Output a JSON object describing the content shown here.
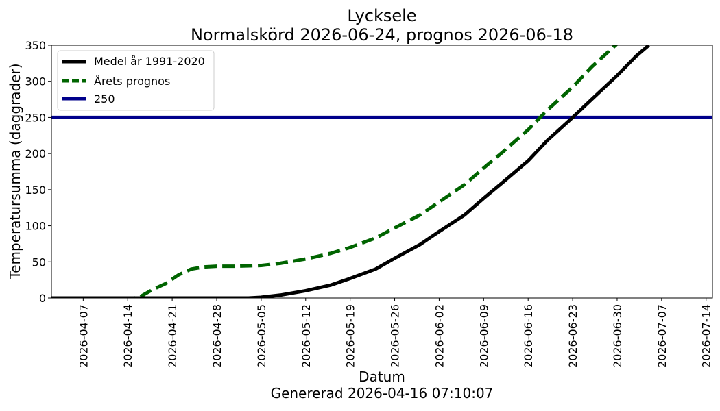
{
  "chart_data": {
    "type": "line",
    "title": "Lycksele",
    "subtitle": "Normalskörd 2026-06-24, prognos 2026-06-18",
    "xlabel": "Datum",
    "ylabel": "Temperatursumma (daggrader)",
    "footer": "Genererad 2026-04-16 07:10:07",
    "xlim": [
      "2026-04-02",
      "2026-07-15"
    ],
    "ylim": [
      0,
      350
    ],
    "x_ticks": [
      "2026-04-07",
      "2026-04-14",
      "2026-04-21",
      "2026-04-28",
      "2026-05-05",
      "2026-05-12",
      "2026-05-19",
      "2026-05-26",
      "2026-06-02",
      "2026-06-09",
      "2026-06-16",
      "2026-06-23",
      "2026-06-30",
      "2026-07-07",
      "2026-07-14"
    ],
    "y_ticks": [
      0,
      50,
      100,
      150,
      200,
      250,
      300,
      350
    ],
    "grid": false,
    "legend": "top-left",
    "series": [
      {
        "name": "Medel år 1991-2020",
        "color": "#000000",
        "style": "solid",
        "x": [
          "2026-04-02",
          "2026-04-28",
          "2026-05-03",
          "2026-05-05",
          "2026-05-08",
          "2026-05-12",
          "2026-05-16",
          "2026-05-19",
          "2026-05-23",
          "2026-05-26",
          "2026-05-30",
          "2026-06-02",
          "2026-06-06",
          "2026-06-09",
          "2026-06-12",
          "2026-06-16",
          "2026-06-19",
          "2026-06-23",
          "2026-06-26",
          "2026-06-30",
          "2026-07-03",
          "2026-07-05"
        ],
        "y": [
          0,
          0,
          0,
          1,
          4,
          10,
          18,
          27,
          40,
          55,
          74,
          92,
          115,
          138,
          160,
          190,
          218,
          250,
          275,
          308,
          335,
          350
        ]
      },
      {
        "name": "Årets prognos",
        "color": "#006400",
        "style": "dashed",
        "x": [
          "2026-04-02",
          "2026-04-15",
          "2026-04-16",
          "2026-04-18",
          "2026-04-20",
          "2026-04-22",
          "2026-04-24",
          "2026-04-26",
          "2026-04-28",
          "2026-05-01",
          "2026-05-05",
          "2026-05-08",
          "2026-05-12",
          "2026-05-16",
          "2026-05-19",
          "2026-05-23",
          "2026-05-26",
          "2026-05-30",
          "2026-06-02",
          "2026-06-06",
          "2026-06-09",
          "2026-06-12",
          "2026-06-16",
          "2026-06-19",
          "2026-06-23",
          "2026-06-26",
          "2026-06-30"
        ],
        "y": [
          0,
          0,
          2,
          12,
          20,
          32,
          40,
          43,
          44,
          44,
          45,
          48,
          54,
          62,
          70,
          83,
          97,
          115,
          133,
          157,
          180,
          202,
          233,
          260,
          292,
          320,
          352
        ]
      },
      {
        "name": "250",
        "color": "#00008B",
        "style": "solid",
        "x": [
          "2026-04-02",
          "2026-07-15"
        ],
        "y": [
          250,
          250
        ]
      }
    ]
  }
}
